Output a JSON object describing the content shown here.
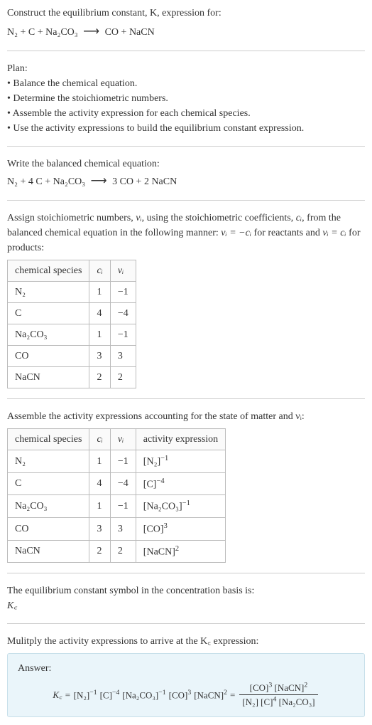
{
  "intro": {
    "line1": "Construct the equilibrium constant, K, expression for:",
    "equation_lhs": "N₂ + C + Na₂CO₃",
    "equation_rhs": "CO + NaCN"
  },
  "plan": {
    "title": "Plan:",
    "items": [
      "Balance the chemical equation.",
      "Determine the stoichiometric numbers.",
      "Assemble the activity expression for each chemical species.",
      "Use the activity expressions to build the equilibrium constant expression."
    ]
  },
  "balanced": {
    "title": "Write the balanced chemical equation:",
    "lhs": "N₂ + 4 C + Na₂CO₃",
    "rhs": "3 CO + 2 NaCN"
  },
  "stoich": {
    "intro_a": "Assign stoichiometric numbers, ",
    "intro_b": ", using the stoichiometric coefficients, ",
    "intro_c": ", from the balanced chemical equation in the following manner: ",
    "intro_d": " for reactants and ",
    "intro_e": " for products:",
    "nu": "νᵢ",
    "ci": "cᵢ",
    "eq1": "νᵢ = −cᵢ",
    "eq2": "νᵢ = cᵢ"
  },
  "table1": {
    "headers": [
      "chemical species",
      "cᵢ",
      "νᵢ"
    ],
    "rows": [
      [
        "N₂",
        "1",
        "−1"
      ],
      [
        "C",
        "4",
        "−4"
      ],
      [
        "Na₂CO₃",
        "1",
        "−1"
      ],
      [
        "CO",
        "3",
        "3"
      ],
      [
        "NaCN",
        "2",
        "2"
      ]
    ]
  },
  "activity": {
    "title": "Assemble the activity expressions accounting for the state of matter and νᵢ:"
  },
  "table2": {
    "headers": [
      "chemical species",
      "cᵢ",
      "νᵢ",
      "activity expression"
    ],
    "rows": [
      {
        "sp": "N₂",
        "c": "1",
        "v": "−1",
        "base": "[N₂]",
        "exp": "−1"
      },
      {
        "sp": "C",
        "c": "4",
        "v": "−4",
        "base": "[C]",
        "exp": "−4"
      },
      {
        "sp": "Na₂CO₃",
        "c": "1",
        "v": "−1",
        "base": "[Na₂CO₃]",
        "exp": "−1"
      },
      {
        "sp": "CO",
        "c": "3",
        "v": "3",
        "base": "[CO]",
        "exp": "3"
      },
      {
        "sp": "NaCN",
        "c": "2",
        "v": "2",
        "base": "[NaCN]",
        "exp": "2"
      }
    ]
  },
  "kc_symbol": {
    "title": "The equilibrium constant symbol in the concentration basis is:",
    "symbol": "K꜀"
  },
  "multiply": {
    "title": "Mulitply the activity expressions to arrive at the K꜀ expression:"
  },
  "answer": {
    "label": "Answer:",
    "kc": "K꜀ = ",
    "flat": [
      {
        "b": "[N₂]",
        "e": "−1"
      },
      {
        "b": "[C]",
        "e": "−4"
      },
      {
        "b": "[Na₂CO₃]",
        "e": "−1"
      },
      {
        "b": "[CO]",
        "e": "3"
      },
      {
        "b": "[NaCN]",
        "e": "2"
      }
    ],
    "eq": " = ",
    "num": [
      {
        "b": "[CO]",
        "e": "3"
      },
      {
        "b": "[NaCN]",
        "e": "2"
      }
    ],
    "den": [
      {
        "b": "[N₂]",
        "e": ""
      },
      {
        "b": "[C]",
        "e": "4"
      },
      {
        "b": "[Na₂CO₃]",
        "e": ""
      }
    ]
  },
  "style": {
    "hr_color": "#cccccc",
    "table_border": "#bbbbbb",
    "answer_bg": "#eaf5fa",
    "answer_border": "#c8e0ea",
    "text_color": "#333333",
    "body_width": 524,
    "base_fontsize": 14
  }
}
